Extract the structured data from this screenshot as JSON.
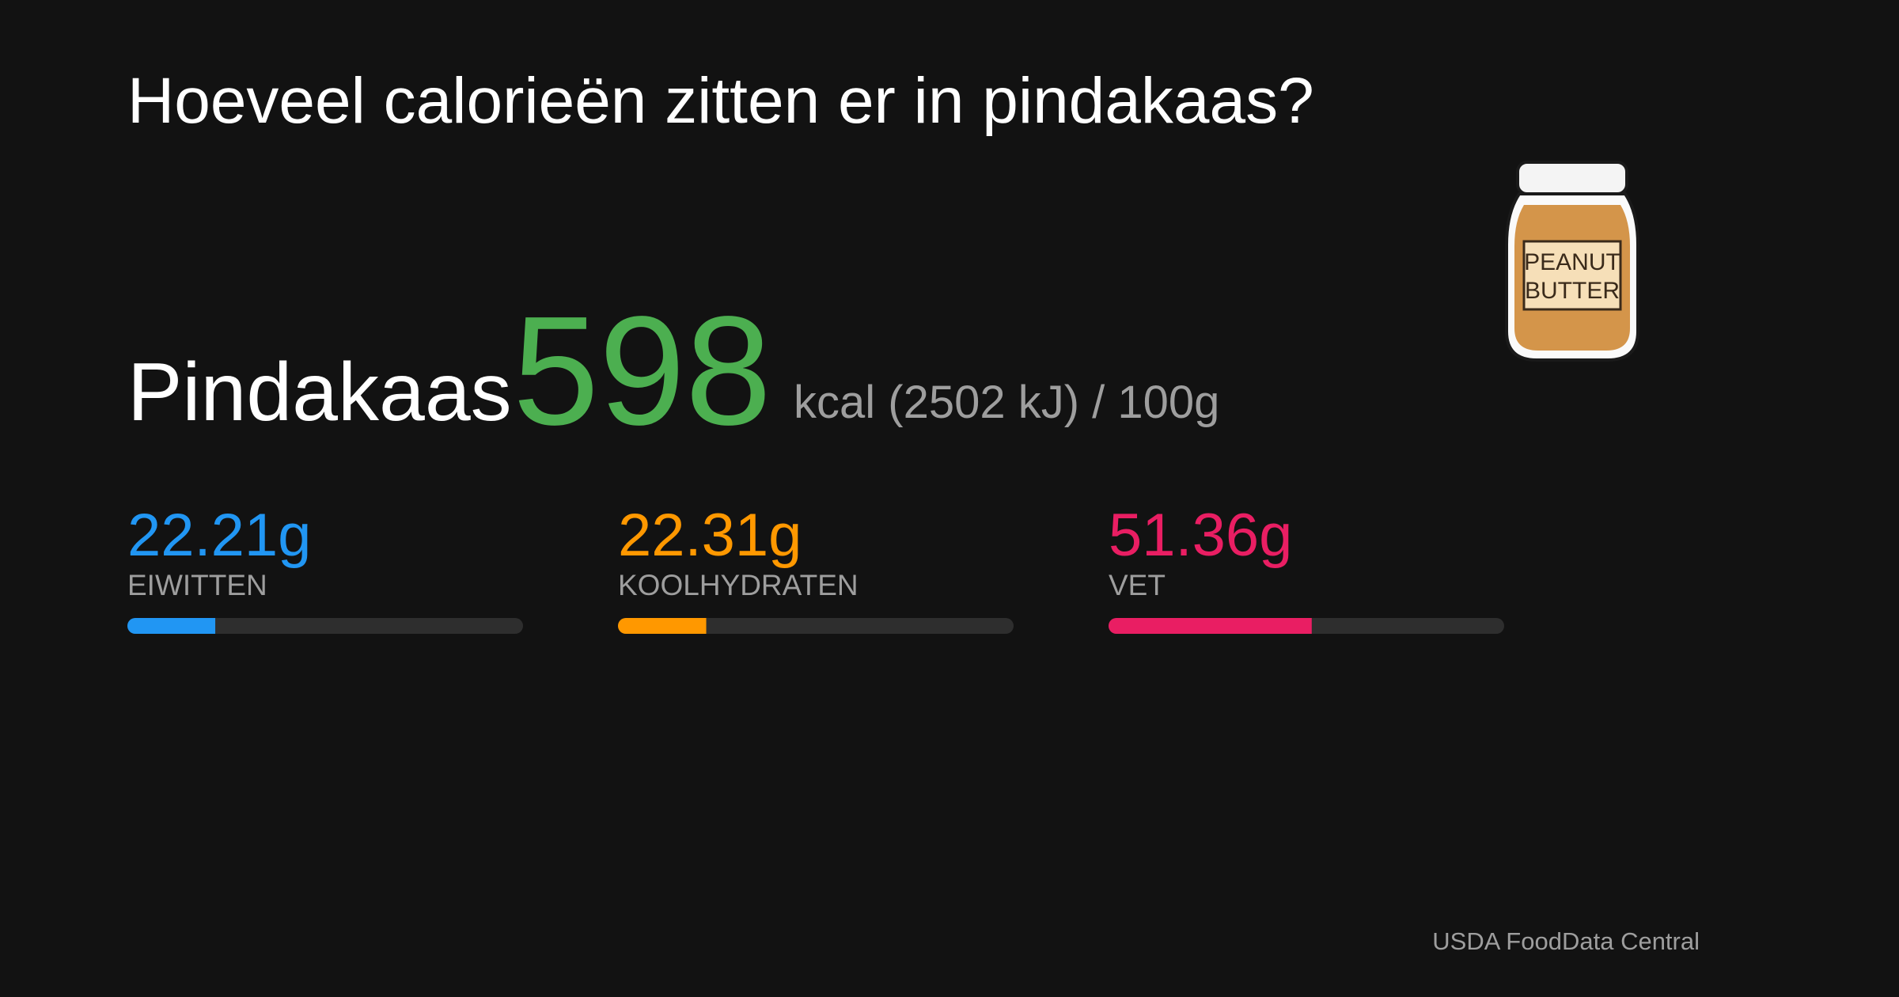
{
  "header": {
    "title": "Hoeveel calorieën zitten er in pindakaas?"
  },
  "food": {
    "name": "Pindakaas",
    "kcal": 598,
    "unit_text": "kcal (2502 kJ) / 100g"
  },
  "illustration": {
    "label_lines": [
      "PEANUT",
      "BUTTER"
    ]
  },
  "macros": {
    "xlim": [
      0,
      100
    ],
    "track_color": "#2e2e2e",
    "items": [
      {
        "name": "EIWITTEN",
        "value": 22.21,
        "value_label": "22.21g",
        "color": "#2196f3"
      },
      {
        "name": "KOOLHYDRATEN",
        "value": 22.31,
        "value_label": "22.31g",
        "color": "#ff9800"
      },
      {
        "name": "VET",
        "value": 51.36,
        "value_label": "51.36g",
        "color": "#e91e63"
      }
    ]
  },
  "footer": {
    "source": "USDA FoodData Central"
  }
}
